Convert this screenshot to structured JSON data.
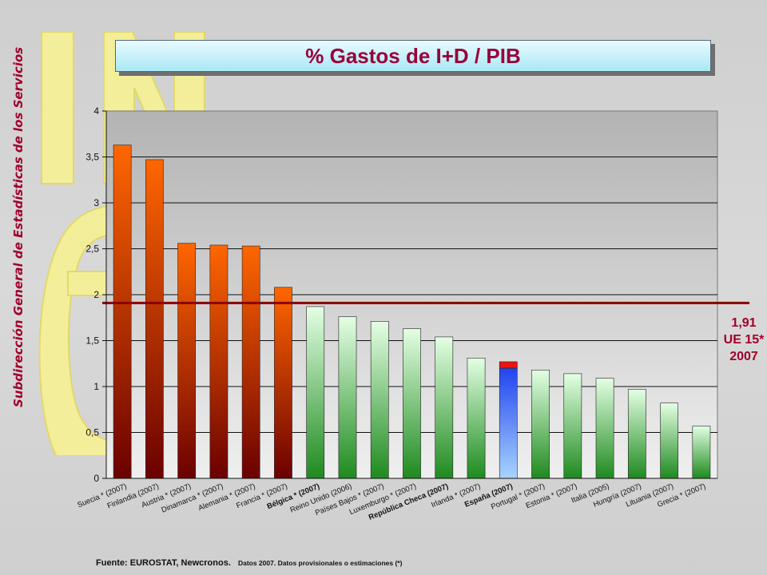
{
  "header": {
    "title": "% Gastos de I+D / PIB",
    "side_text": "Subdirección General de Estadísticas de los Servicios"
  },
  "reference": {
    "value": 1.91,
    "label_lines": [
      "1,91",
      "UE 15*",
      "2007"
    ],
    "color": "#8b0000"
  },
  "footer": {
    "source_main": "Fuente: EUROSTAT, Newcronos.",
    "source_note": "Datos 2007. Datos provisionales o estimaciones (*)"
  },
  "colors": {
    "high_group": "#ff6600",
    "low_group": "#1e8a1e",
    "spain": "#2244ee",
    "spain_cap": "#ee1111",
    "title_text": "#99003a"
  },
  "chart_data": {
    "type": "bar",
    "title": "% Gastos de I+D / PIB",
    "xlabel": "",
    "ylabel": "",
    "ylim": [
      0,
      4
    ],
    "yticks": [
      {
        "value": 0,
        "label": "0"
      },
      {
        "value": 0.5,
        "label": "0,5"
      },
      {
        "value": 1,
        "label": "1"
      },
      {
        "value": 1.5,
        "label": "1,5"
      },
      {
        "value": 2,
        "label": "2"
      },
      {
        "value": 2.5,
        "label": "2,5"
      },
      {
        "value": 3,
        "label": "3"
      },
      {
        "value": 3.5,
        "label": "3,5"
      },
      {
        "value": 4,
        "label": "4"
      }
    ],
    "grid": true,
    "categories": [
      "Suecia * (2007)",
      "Finlandia (2007)",
      "Austria * (2007)",
      "Dinamarca * (2007)",
      "Alemania * (2007)",
      "Francia * (2007)",
      "Bélgica * (2007)",
      "Reino Unido (2006)",
      "Países Bajos * (2007)",
      "Luxemburgo * (2007)",
      "República Checa (2007)",
      "Irlanda * (2007)",
      "España (2007)",
      "Portugal * (2007)",
      "Estonia * (2007)",
      "Italia (2005)",
      "Hungría (2007)",
      "Lituania (2007)",
      "Grecia * (2007)"
    ],
    "values": [
      3.63,
      3.47,
      2.56,
      2.54,
      2.53,
      2.08,
      1.87,
      1.76,
      1.71,
      1.63,
      1.54,
      1.31,
      1.27,
      1.18,
      1.14,
      1.09,
      0.97,
      0.82,
      0.57
    ],
    "bold_labels": [
      "Bélgica * (2007)",
      "República Checa (2007)",
      "España (2007)"
    ],
    "highlight": "España (2007)",
    "highlight_split": 1.2
  }
}
